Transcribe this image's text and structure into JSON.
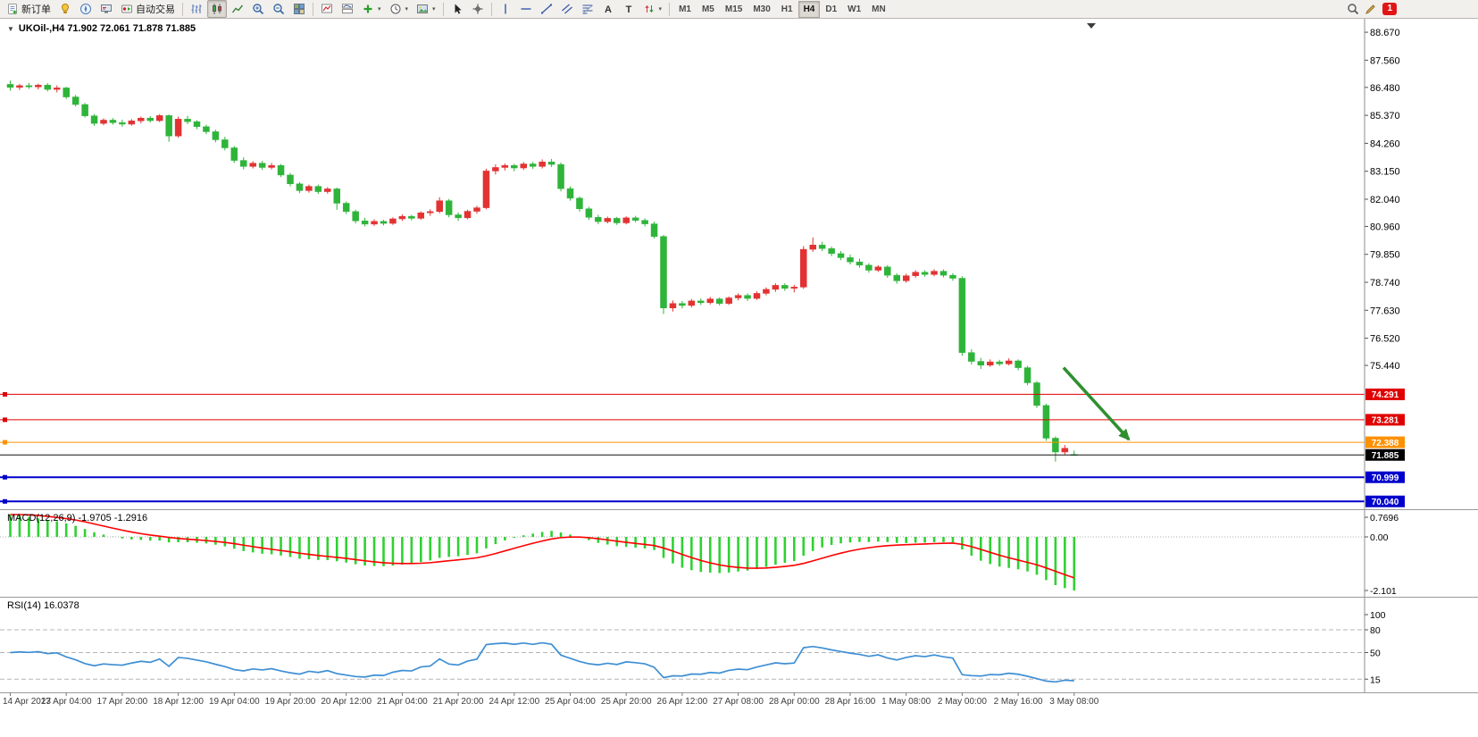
{
  "window": {
    "notification_count": "1"
  },
  "toolbar": {
    "new_order_label": "新订单",
    "autotrade_label": "自动交易",
    "timeframes": [
      "M1",
      "M5",
      "M15",
      "M30",
      "H1",
      "H4",
      "D1",
      "W1",
      "MN"
    ],
    "active_timeframe": "H4"
  },
  "icons": {
    "new-order": "page-plus",
    "market-watch": "yellow-book",
    "navigator": "compass",
    "terminal": "monitor",
    "autotrade": "ea-robot",
    "bar-chart": "ohlc-bars",
    "candlestick": "candles",
    "line-chart": "polyline",
    "zoom-in": "magnifier-plus",
    "zoom-out": "magnifier-minus",
    "tile-windows": "grid",
    "indicators": "chart-red-line",
    "indicator-window": "chart-panels",
    "add-indicator": "green-plus",
    "periods": "clock",
    "templates": "picture",
    "cursor": "pointer",
    "crosshair": "cross",
    "vertical-line": "|",
    "horizontal-line": "—",
    "trendline": "/",
    "channel": "parallel-lines",
    "fibonacci": "fib-lines",
    "text": "A",
    "label": "T",
    "arrows": "up-down-arrows",
    "search": "magnifier",
    "edit": "pencil",
    "one-click-toggle": "▼",
    "shift-marker": "▼"
  },
  "chart": {
    "title": "UKOil-,H4 71.902 72.061 71.878 71.885",
    "symbol": "UKOil-",
    "period": "H4",
    "open": "71.902",
    "high": "72.061",
    "low": "71.878",
    "close": "71.885"
  },
  "indicators": {
    "macd_label": "MACD(12,26,9) -1.9705 -1.2916",
    "rsi_label": "RSI(14) 16.0378"
  },
  "chart_data": {
    "type": "candlestick",
    "symbol": "UKOil-",
    "timeframe": "H4",
    "price_scale": [
      69.73,
      89.17
    ],
    "price_axis_labels": [
      88.67,
      87.56,
      86.48,
      85.37,
      84.26,
      83.15,
      82.04,
      80.96,
      79.85,
      78.74,
      77.63,
      76.52,
      75.44
    ],
    "colors": {
      "up": "#e23232",
      "down": "#2fb43a"
    },
    "levels": [
      {
        "price": 74.291,
        "badge": "74.291",
        "color": "#e00000",
        "width": 1
      },
      {
        "price": 73.281,
        "badge": "73.281",
        "color": "#e00000",
        "width": 1
      },
      {
        "price": 72.388,
        "badge": "72.388",
        "color": "#ff9000",
        "width": 1
      },
      {
        "price": 70.999,
        "badge": "70.999",
        "color": "#0000cc",
        "width": 2
      },
      {
        "price": 70.04,
        "badge": "70.040",
        "color": "#0000cc",
        "width": 2
      }
    ],
    "current_price": {
      "value": 71.885,
      "badge": "71.885",
      "color": "#000000"
    },
    "time_labels": [
      {
        "i": 0,
        "label": "14 Apr 2023"
      },
      {
        "i": 6,
        "label": "17 Apr 04:00"
      },
      {
        "i": 12,
        "label": "17 Apr 20:00"
      },
      {
        "i": 18,
        "label": "18 Apr 12:00"
      },
      {
        "i": 24,
        "label": "19 Apr 04:00"
      },
      {
        "i": 30,
        "label": "19 Apr 20:00"
      },
      {
        "i": 36,
        "label": "20 Apr 12:00"
      },
      {
        "i": 42,
        "label": "21 Apr 04:00"
      },
      {
        "i": 48,
        "label": "21 Apr 20:00"
      },
      {
        "i": 54,
        "label": "24 Apr 12:00"
      },
      {
        "i": 60,
        "label": "25 Apr 04:00"
      },
      {
        "i": 66,
        "label": "25 Apr 20:00"
      },
      {
        "i": 72,
        "label": "26 Apr 12:00"
      },
      {
        "i": 78,
        "label": "27 Apr 08:00"
      },
      {
        "i": 84,
        "label": "28 Apr 00:00"
      },
      {
        "i": 90,
        "label": "28 Apr 16:00"
      },
      {
        "i": 96,
        "label": "1 May 08:00"
      },
      {
        "i": 102,
        "label": "2 May 00:00"
      },
      {
        "i": 108,
        "label": "2 May 16:00"
      },
      {
        "i": 114,
        "label": "3 May 08:00"
      }
    ],
    "candles": [
      [
        86.6,
        86.75,
        86.35,
        86.48
      ],
      [
        86.48,
        86.62,
        86.38,
        86.55
      ],
      [
        86.55,
        86.66,
        86.42,
        86.5
      ],
      [
        86.5,
        86.63,
        86.4,
        86.57
      ],
      [
        86.57,
        86.65,
        86.32,
        86.4
      ],
      [
        86.4,
        86.56,
        86.28,
        86.46
      ],
      [
        86.46,
        86.5,
        86.02,
        86.1
      ],
      [
        86.1,
        86.18,
        85.72,
        85.8
      ],
      [
        85.8,
        85.86,
        85.28,
        85.35
      ],
      [
        85.35,
        85.42,
        84.95,
        85.05
      ],
      [
        85.05,
        85.25,
        84.98,
        85.18
      ],
      [
        85.18,
        85.26,
        85.0,
        85.08
      ],
      [
        85.08,
        85.2,
        84.92,
        85.02
      ],
      [
        85.02,
        85.22,
        84.96,
        85.15
      ],
      [
        85.15,
        85.32,
        85.05,
        85.26
      ],
      [
        85.26,
        85.34,
        85.08,
        85.16
      ],
      [
        85.16,
        85.42,
        85.1,
        85.36
      ],
      [
        85.36,
        85.4,
        84.32,
        84.55
      ],
      [
        84.55,
        85.32,
        84.48,
        85.22
      ],
      [
        85.22,
        85.35,
        85.02,
        85.12
      ],
      [
        85.12,
        85.18,
        84.82,
        84.92
      ],
      [
        84.92,
        85.0,
        84.62,
        84.72
      ],
      [
        84.72,
        84.8,
        84.3,
        84.4
      ],
      [
        84.4,
        84.52,
        83.98,
        84.08
      ],
      [
        84.08,
        84.15,
        83.48,
        83.58
      ],
      [
        83.58,
        83.7,
        83.22,
        83.34
      ],
      [
        83.34,
        83.55,
        83.26,
        83.47
      ],
      [
        83.47,
        83.56,
        83.2,
        83.3
      ],
      [
        83.3,
        83.48,
        83.22,
        83.38
      ],
      [
        83.38,
        83.44,
        82.92,
        83.0
      ],
      [
        83.0,
        83.08,
        82.55,
        82.65
      ],
      [
        82.65,
        82.72,
        82.28,
        82.38
      ],
      [
        82.38,
        82.62,
        82.3,
        82.55
      ],
      [
        82.55,
        82.62,
        82.25,
        82.34
      ],
      [
        82.34,
        82.52,
        82.26,
        82.45
      ],
      [
        82.45,
        82.5,
        81.62,
        81.88
      ],
      [
        81.88,
        81.95,
        81.45,
        81.55
      ],
      [
        81.55,
        81.62,
        81.08,
        81.18
      ],
      [
        81.18,
        81.3,
        80.96,
        81.05
      ],
      [
        81.05,
        81.24,
        80.98,
        81.16
      ],
      [
        81.16,
        81.22,
        81.0,
        81.08
      ],
      [
        81.08,
        81.32,
        81.02,
        81.26
      ],
      [
        81.26,
        81.44,
        81.18,
        81.36
      ],
      [
        81.36,
        81.42,
        81.2,
        81.28
      ],
      [
        81.28,
        81.56,
        81.22,
        81.5
      ],
      [
        81.5,
        81.64,
        81.38,
        81.55
      ],
      [
        81.55,
        82.12,
        81.48,
        81.98
      ],
      [
        81.98,
        82.05,
        81.32,
        81.42
      ],
      [
        81.42,
        81.52,
        81.18,
        81.3
      ],
      [
        81.3,
        81.62,
        81.24,
        81.56
      ],
      [
        81.56,
        81.78,
        81.46,
        81.7
      ],
      [
        81.7,
        83.25,
        81.64,
        83.16
      ],
      [
        83.16,
        83.42,
        83.02,
        83.3
      ],
      [
        83.3,
        83.46,
        83.18,
        83.38
      ],
      [
        83.38,
        83.45,
        83.15,
        83.28
      ],
      [
        83.28,
        83.52,
        83.2,
        83.44
      ],
      [
        83.44,
        83.52,
        83.24,
        83.34
      ],
      [
        83.34,
        83.62,
        83.26,
        83.52
      ],
      [
        83.52,
        83.64,
        83.32,
        83.42
      ],
      [
        83.42,
        83.5,
        82.35,
        82.46
      ],
      [
        82.46,
        82.55,
        81.98,
        82.08
      ],
      [
        82.08,
        82.15,
        81.55,
        81.66
      ],
      [
        81.66,
        81.74,
        81.22,
        81.32
      ],
      [
        81.32,
        81.42,
        81.05,
        81.15
      ],
      [
        81.15,
        81.35,
        81.08,
        81.28
      ],
      [
        81.28,
        81.34,
        81.02,
        81.1
      ],
      [
        81.1,
        81.36,
        81.04,
        81.3
      ],
      [
        81.3,
        81.38,
        81.12,
        81.2
      ],
      [
        81.2,
        81.28,
        80.96,
        81.06
      ],
      [
        81.06,
        81.15,
        80.48,
        80.56
      ],
      [
        80.56,
        80.62,
        77.48,
        77.72
      ],
      [
        77.72,
        78.02,
        77.58,
        77.9
      ],
      [
        77.9,
        78.0,
        77.7,
        77.82
      ],
      [
        77.82,
        78.08,
        77.74,
        78.0
      ],
      [
        78.0,
        78.1,
        77.84,
        77.93
      ],
      [
        77.93,
        78.16,
        77.86,
        78.08
      ],
      [
        78.08,
        78.14,
        77.82,
        77.9
      ],
      [
        77.9,
        78.18,
        77.84,
        78.12
      ],
      [
        78.12,
        78.3,
        78.02,
        78.22
      ],
      [
        78.22,
        78.3,
        78.0,
        78.1
      ],
      [
        78.1,
        78.38,
        78.04,
        78.3
      ],
      [
        78.3,
        78.54,
        78.22,
        78.46
      ],
      [
        78.46,
        78.7,
        78.36,
        78.62
      ],
      [
        78.62,
        78.7,
        78.4,
        78.5
      ],
      [
        78.5,
        78.64,
        78.34,
        78.55
      ],
      [
        78.55,
        80.18,
        78.48,
        80.05
      ],
      [
        80.05,
        80.52,
        79.95,
        80.22
      ],
      [
        80.22,
        80.35,
        79.98,
        80.08
      ],
      [
        80.08,
        80.16,
        79.78,
        79.88
      ],
      [
        79.88,
        79.98,
        79.62,
        79.72
      ],
      [
        79.72,
        79.84,
        79.45,
        79.55
      ],
      [
        79.55,
        79.68,
        79.32,
        79.42
      ],
      [
        79.42,
        79.5,
        79.12,
        79.22
      ],
      [
        79.22,
        79.42,
        79.15,
        79.35
      ],
      [
        79.35,
        79.42,
        78.92,
        79.02
      ],
      [
        79.02,
        79.1,
        78.68,
        78.8
      ],
      [
        78.8,
        79.08,
        78.72,
        79.0
      ],
      [
        79.0,
        79.22,
        78.92,
        79.14
      ],
      [
        79.14,
        79.22,
        78.96,
        79.05
      ],
      [
        79.05,
        79.26,
        78.98,
        79.18
      ],
      [
        79.18,
        79.25,
        78.94,
        79.02
      ],
      [
        79.02,
        79.1,
        78.8,
        78.9
      ],
      [
        78.9,
        78.98,
        75.82,
        75.95
      ],
      [
        75.95,
        76.08,
        75.48,
        75.6
      ],
      [
        75.6,
        75.74,
        75.3,
        75.45
      ],
      [
        75.45,
        75.68,
        75.38,
        75.58
      ],
      [
        75.58,
        75.66,
        75.42,
        75.5
      ],
      [
        75.5,
        75.72,
        75.44,
        75.62
      ],
      [
        75.62,
        75.68,
        75.25,
        75.35
      ],
      [
        75.35,
        75.42,
        74.65,
        74.75
      ],
      [
        74.75,
        74.82,
        73.75,
        73.85
      ],
      [
        73.85,
        73.92,
        72.45,
        72.55
      ],
      [
        72.55,
        72.62,
        71.62,
        72.0
      ],
      [
        72.0,
        72.28,
        71.9,
        72.15
      ],
      [
        71.902,
        72.061,
        71.878,
        71.885
      ]
    ],
    "macd": {
      "name": "MACD",
      "params": "12,26,9",
      "value": -1.9705,
      "signal": -1.2916,
      "axis_labels": [
        {
          "text": "0.7696",
          "value": 0.7696
        },
        {
          "text": "0.00",
          "value": 0
        },
        {
          "text": "-2.101",
          "value": -2.101
        }
      ],
      "initial_value": 0.7696,
      "scale_min": -2.101,
      "hist_color": "#2fd132",
      "signal_color": "#ff0000"
    },
    "rsi": {
      "name": "RSI",
      "period": 14,
      "value": 16.0378,
      "levels": [
        80,
        50,
        15
      ],
      "axis_labels": [
        {
          "text": "100",
          "value": 100
        },
        {
          "text": "80",
          "value": 80
        },
        {
          "text": "50",
          "value": 50
        },
        {
          "text": "15",
          "value": 15
        }
      ],
      "color": "#3e8fd4",
      "level_color": "#b4b4b4"
    },
    "arrow": {
      "from": {
        "i": 113.2,
        "price": 75.35
      },
      "to": {
        "i": 120.2,
        "price": 72.5
      },
      "color": "#2f8f2f"
    }
  }
}
